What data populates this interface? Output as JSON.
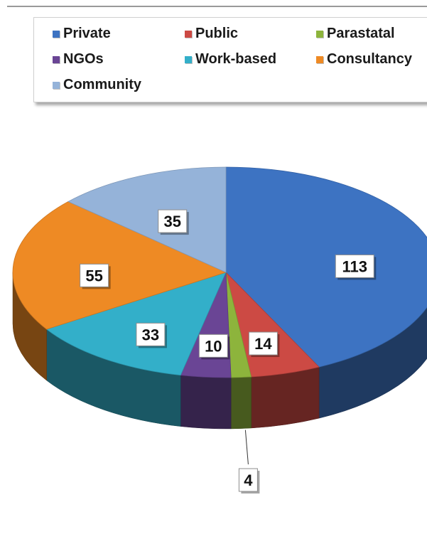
{
  "chart_data": {
    "type": "pie",
    "style": "3d-exploded-view",
    "title": "",
    "legend_position": "top",
    "series": [
      {
        "name": "Private",
        "value": 113,
        "color": "#3D73C2"
      },
      {
        "name": "Public",
        "value": 14,
        "color": "#CC4A44"
      },
      {
        "name": "Parastatal",
        "value": 4,
        "color": "#8DB43C"
      },
      {
        "name": "NGOs",
        "value": 10,
        "color": "#6A4595"
      },
      {
        "name": "Work-based",
        "value": 33,
        "color": "#33AFC9"
      },
      {
        "name": "Consultancy",
        "value": 55,
        "color": "#EE8A24"
      },
      {
        "name": "Community",
        "value": 35,
        "color": "#95B3D9"
      }
    ]
  }
}
